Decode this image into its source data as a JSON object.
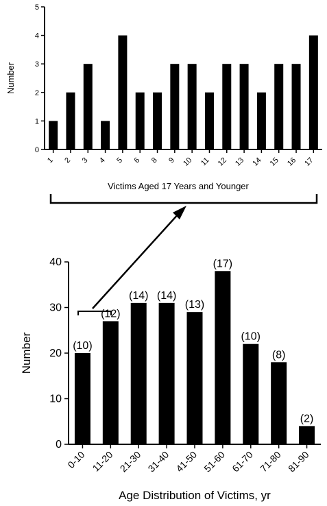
{
  "chart_data": [
    {
      "type": "bar",
      "xlabel": "Victims Aged 17 Years and Younger",
      "ylabel": "Number",
      "categories": [
        "1",
        "2",
        "3",
        "4",
        "5",
        "6",
        "8",
        "9",
        "10",
        "11",
        "12",
        "13",
        "14",
        "15",
        "16",
        "17"
      ],
      "values": [
        1,
        2,
        3,
        1,
        4,
        2,
        2,
        3,
        3,
        2,
        3,
        3,
        2,
        3,
        3,
        4
      ],
      "ylim": [
        0,
        5
      ],
      "yticks": [
        "0",
        "1",
        "2",
        "3",
        "4",
        "5"
      ]
    },
    {
      "type": "bar",
      "xlabel": "Age Distribution of Victims, yr",
      "ylabel": "Number",
      "categories": [
        "0-10",
        "11-20",
        "21-30",
        "31-40",
        "41-50",
        "51-60",
        "61-70",
        "71-80",
        "81-90"
      ],
      "values": [
        20,
        27,
        31,
        31,
        29,
        38,
        22,
        18,
        4
      ],
      "data_labels": [
        "(10)",
        "(12)",
        "(14)",
        "(14)",
        "(13)",
        "(17)",
        "(10)",
        "(8)",
        "(2)"
      ],
      "ylim": [
        0,
        40
      ],
      "yticks": [
        "0",
        "10",
        "20",
        "30",
        "40"
      ]
    }
  ],
  "colors": {
    "bar": "#000000",
    "axis": "#000000"
  }
}
